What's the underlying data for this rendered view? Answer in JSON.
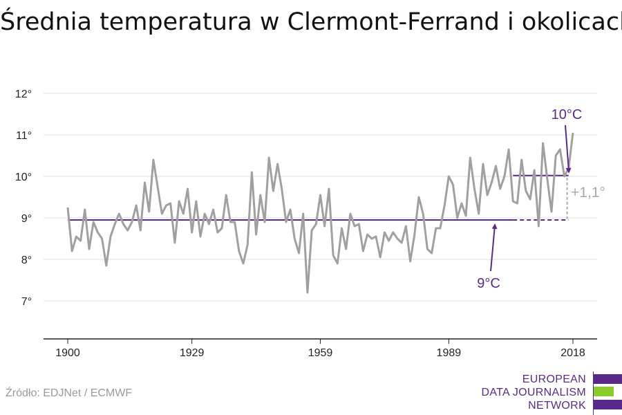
{
  "title": "Średnia temperatura w Clermont-Ferrand i okolicach",
  "source": "Źródło: EDJNet / ECMWF",
  "logo": {
    "line1": "EUROPEAN",
    "line2": "DATA JOURNALISM",
    "line3": "NETWORK"
  },
  "colors": {
    "series": "#a0a0a0",
    "accent": "#5a2a8a",
    "grid": "#dddddd",
    "baseline": "#222222",
    "diff": "#aaaaaa"
  },
  "chart_data": {
    "type": "line",
    "title": "Średnia temperatura w Clermont-Ferrand i okolicach",
    "xlabel": "",
    "ylabel": "",
    "xlim": [
      1900,
      2018
    ],
    "ylim": [
      7,
      12
    ],
    "x_ticks": [
      1900,
      1929,
      1959,
      1989,
      2018
    ],
    "x_tick_labels": [
      "1900",
      "1929",
      "1959",
      "1989",
      "2018"
    ],
    "y_ticks": [
      7,
      8,
      9,
      10,
      11,
      12
    ],
    "y_tick_labels": [
      "7°",
      "8°",
      "9°",
      "10°",
      "11°",
      "12°"
    ],
    "grid": true,
    "series": [
      {
        "x_start": 1900,
        "values": [
          9.25,
          8.2,
          8.55,
          8.45,
          9.2,
          8.25,
          8.9,
          8.65,
          8.5,
          7.85,
          8.55,
          8.85,
          9.1,
          8.85,
          8.7,
          8.9,
          9.3,
          8.7,
          9.85,
          9.15,
          10.4,
          9.75,
          9.1,
          9.3,
          9.35,
          8.4,
          9.4,
          9.1,
          9.7,
          8.65,
          9.4,
          8.55,
          9.1,
          8.85,
          9.2,
          8.65,
          8.75,
          9.55,
          8.9,
          8.9,
          8.2,
          7.9,
          8.35,
          10.1,
          8.6,
          9.55,
          8.9,
          10.45,
          9.65,
          10.3,
          9.7,
          8.9,
          9.2,
          8.5,
          8.15,
          9.1,
          7.2,
          8.7,
          8.85,
          9.55,
          8.8,
          9.7,
          8.1,
          7.9,
          8.75,
          8.25,
          9.1,
          8.8,
          8.85,
          8.2,
          8.6,
          8.5,
          8.55,
          8.05,
          8.65,
          8.45,
          8.65,
          8.5,
          8.4,
          8.8,
          7.95,
          8.6,
          9.5,
          9.1,
          8.25,
          8.15,
          8.75,
          8.75,
          9.3,
          10.0,
          9.8,
          9.0,
          9.35,
          9.05,
          10.45,
          9.7,
          9.1,
          10.3,
          9.55,
          9.85,
          10.25,
          9.7,
          10.0,
          10.65,
          9.4,
          9.35,
          10.4,
          9.65,
          9.45,
          10.15,
          8.8,
          10.8,
          9.95,
          9.15,
          10.5,
          10.65,
          10.0,
          10.2,
          11.05
        ]
      }
    ],
    "annotations": {
      "avg_1900_label": "9°C",
      "avg_1900_value": 8.95,
      "avg_1900_solid_until": 2004,
      "avg_recent_label": "10°C",
      "avg_recent_value": 10.02,
      "avg_recent_from": 2004,
      "diff_label": "+1,1°",
      "end_year": 2016
    }
  }
}
